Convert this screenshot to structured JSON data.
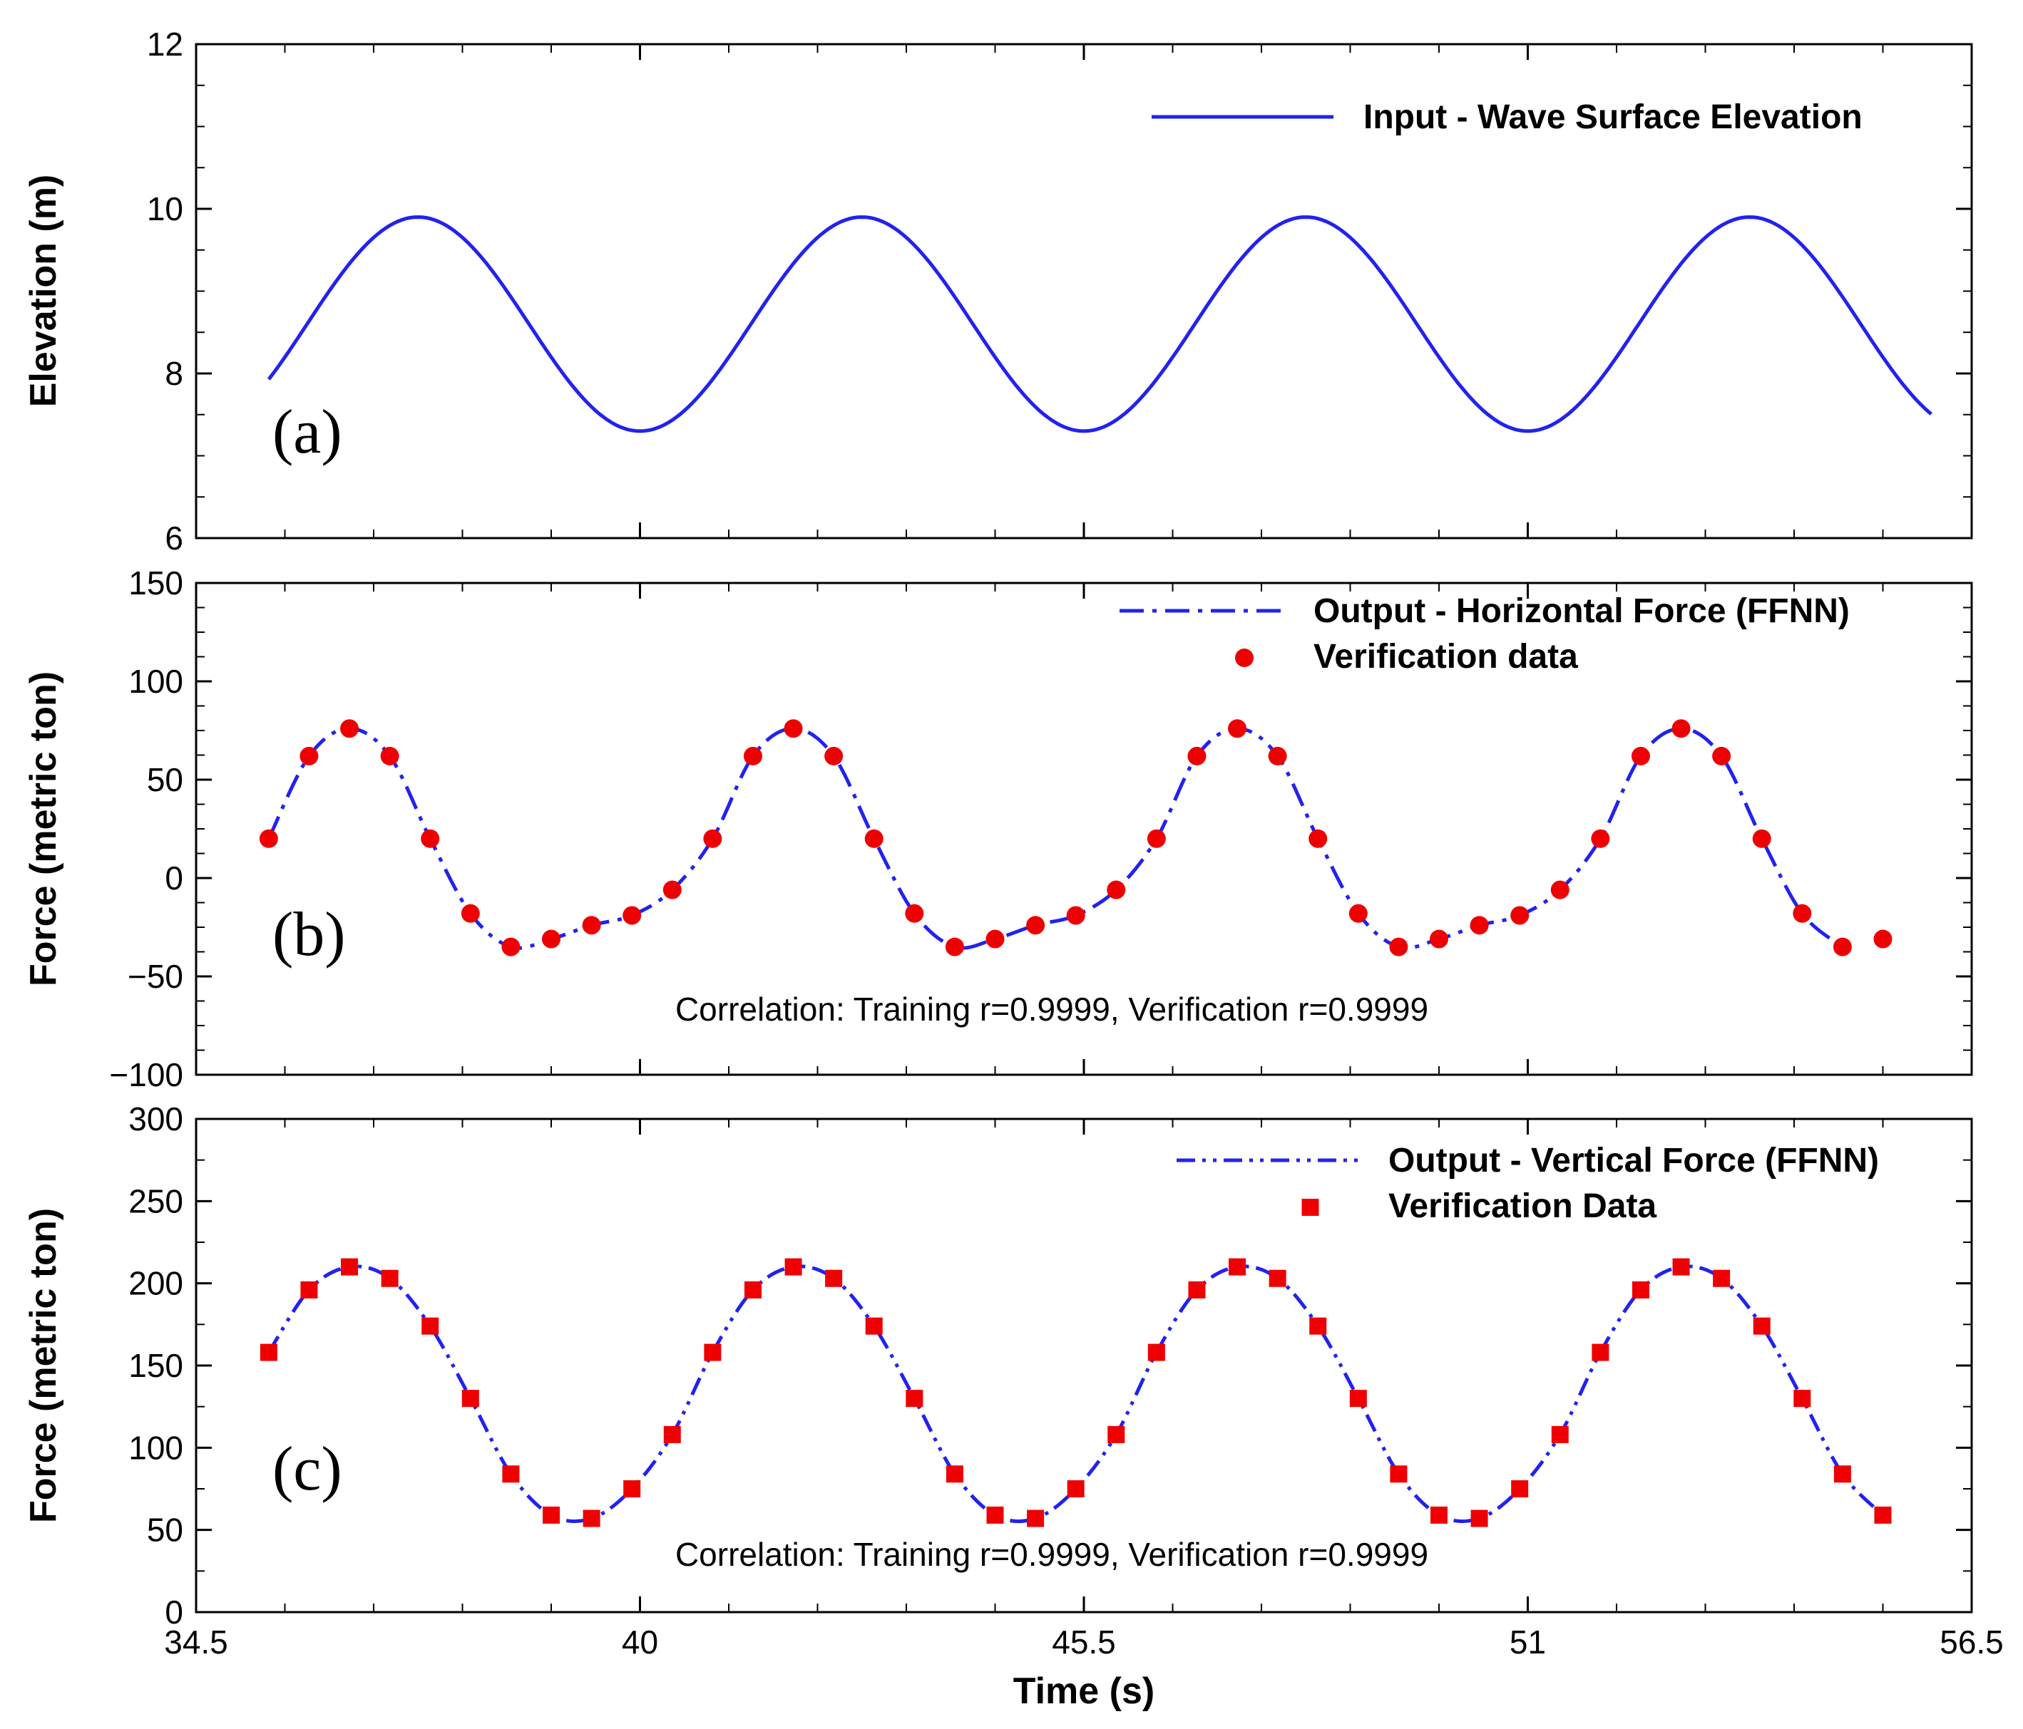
{
  "chart_data": [
    {
      "type": "line",
      "panel_label": "(a)",
      "ylabel": "Elevation (m)",
      "ylim": [
        6,
        12
      ],
      "yticks": [
        6,
        8,
        10,
        12
      ],
      "ytick_labels": [
        "6",
        "8",
        "10",
        "12"
      ],
      "y_minor_step": 0.5,
      "xlim": [
        34.5,
        56.5
      ],
      "legend_position": "top-right",
      "series": [
        {
          "name": "Input - Wave Surface Elevation",
          "style": "solid",
          "color": "#2222ee",
          "model": {
            "mean": 8.6,
            "amplitude": 1.3,
            "period": 5.5,
            "peak_time": 37.25
          },
          "t_range": [
            35.4,
            56.0
          ]
        }
      ]
    },
    {
      "type": "line",
      "panel_label": "(b)",
      "ylabel": "Force (metric ton)",
      "ylim": [
        -100,
        150
      ],
      "yticks": [
        -100,
        -50,
        0,
        50,
        100,
        150
      ],
      "ytick_labels": [
        "−100",
        "−50",
        "0",
        "50",
        "100",
        "150"
      ],
      "y_minor_step": 12.5,
      "xlim": [
        34.5,
        56.5
      ],
      "legend_position": "top-right",
      "annotation": "Correlation: Training r=0.9999, Verification r=0.9999",
      "series": [
        {
          "name": "Output - Horizontal Force (FFNN)",
          "style": "dashdot",
          "color": "#2222ee",
          "x": [
            35.4,
            35.9,
            36.4,
            36.9,
            37.4,
            37.9,
            38.4,
            38.9,
            39.4,
            39.9,
            40.4,
            40.9,
            41.4,
            41.9,
            42.4,
            42.9,
            43.4,
            43.9,
            44.4,
            44.9,
            45.4,
            45.9,
            46.4,
            46.9,
            47.4,
            47.9,
            48.4,
            48.9,
            49.4,
            49.9,
            50.4,
            50.9,
            51.4,
            51.9,
            52.4,
            52.9,
            53.4,
            53.9,
            54.4,
            54.9
          ],
          "values": [
            20,
            62,
            76,
            62,
            20,
            -18,
            -35,
            -31,
            -24,
            -19,
            -6,
            20,
            62,
            76,
            62,
            20,
            -18,
            -35,
            -31,
            -24,
            -19,
            -6,
            20,
            62,
            76,
            62,
            20,
            -18,
            -35,
            -31,
            -24,
            -19,
            -6,
            20,
            62,
            76,
            62,
            20,
            -18,
            -35
          ]
        },
        {
          "name": "Verification data",
          "style": "circle-markers",
          "color": "#ee0000",
          "x": [
            35.4,
            35.9,
            36.4,
            36.9,
            37.4,
            37.9,
            38.4,
            38.9,
            39.4,
            39.9,
            40.4,
            40.9,
            41.4,
            41.9,
            42.4,
            42.9,
            43.4,
            43.9,
            44.4,
            44.9,
            45.4,
            45.9,
            46.4,
            46.9,
            47.4,
            47.9,
            48.4,
            48.9,
            49.4,
            49.9,
            50.4,
            50.9,
            51.4,
            51.9,
            52.4,
            52.9,
            53.4,
            53.9,
            54.4,
            54.9,
            55.4
          ],
          "values": [
            20,
            62,
            76,
            62,
            20,
            -18,
            -35,
            -31,
            -24,
            -19,
            -6,
            20,
            62,
            76,
            62,
            20,
            -18,
            -35,
            -31,
            -24,
            -19,
            -6,
            20,
            62,
            76,
            62,
            20,
            -18,
            -35,
            -31,
            -24,
            -19,
            -6,
            20,
            62,
            76,
            62,
            20,
            -18,
            -35,
            -31
          ]
        }
      ]
    },
    {
      "type": "line",
      "panel_label": "(c)",
      "ylabel": "Force (metric ton)",
      "ylim": [
        0,
        300
      ],
      "yticks": [
        0,
        50,
        100,
        150,
        200,
        250,
        300
      ],
      "ytick_labels": [
        "0",
        "50",
        "100",
        "150",
        "200",
        "250",
        "300"
      ],
      "y_minor_step": 25,
      "xlim": [
        34.5,
        56.5
      ],
      "xticks": [
        34.5,
        40,
        45.5,
        51,
        56.5
      ],
      "xtick_labels": [
        "34.5",
        "40",
        "45.5",
        "51",
        "56.5"
      ],
      "x_minor_step": 1.1,
      "xlabel": "Time (s)",
      "legend_position": "top-right",
      "annotation": "Correlation: Training r=0.9999, Verification r=0.9999",
      "series": [
        {
          "name": "Output - Vertical Force (FFNN)",
          "style": "dashdotdot",
          "color": "#2222ee",
          "x": [
            35.4,
            35.9,
            36.4,
            36.9,
            37.4,
            37.9,
            38.4,
            38.9,
            39.4,
            39.9,
            40.4,
            40.9,
            41.4,
            41.9,
            42.4,
            42.9,
            43.4,
            43.9,
            44.4,
            44.9,
            45.4,
            45.9,
            46.4,
            46.9,
            47.4,
            47.9,
            48.4,
            48.9,
            49.4,
            49.9,
            50.4,
            50.9,
            51.4,
            51.9,
            52.4,
            52.9,
            53.4,
            53.9,
            54.4,
            54.9,
            55.4
          ],
          "values": [
            158,
            196,
            210,
            203,
            174,
            130,
            84,
            59,
            57,
            75,
            108,
            158,
            196,
            210,
            203,
            174,
            130,
            84,
            59,
            57,
            75,
            108,
            158,
            196,
            210,
            203,
            174,
            130,
            84,
            59,
            57,
            75,
            108,
            158,
            196,
            210,
            203,
            174,
            130,
            84,
            59
          ]
        },
        {
          "name": "Verification Data",
          "style": "square-markers",
          "color": "#ee0000",
          "x": [
            35.4,
            35.9,
            36.4,
            36.9,
            37.4,
            37.9,
            38.4,
            38.9,
            39.4,
            39.9,
            40.4,
            40.9,
            41.4,
            41.9,
            42.4,
            42.9,
            43.4,
            43.9,
            44.4,
            44.9,
            45.4,
            45.9,
            46.4,
            46.9,
            47.4,
            47.9,
            48.4,
            48.9,
            49.4,
            49.9,
            50.4,
            50.9,
            51.4,
            51.9,
            52.4,
            52.9,
            53.4,
            53.9,
            54.4,
            54.9,
            55.4
          ],
          "values": [
            158,
            196,
            210,
            203,
            174,
            130,
            84,
            59,
            57,
            75,
            108,
            158,
            196,
            210,
            203,
            174,
            130,
            84,
            59,
            57,
            75,
            108,
            158,
            196,
            210,
            203,
            174,
            130,
            84,
            59,
            57,
            75,
            108,
            158,
            196,
            210,
            203,
            174,
            130,
            84,
            59
          ]
        }
      ]
    }
  ]
}
